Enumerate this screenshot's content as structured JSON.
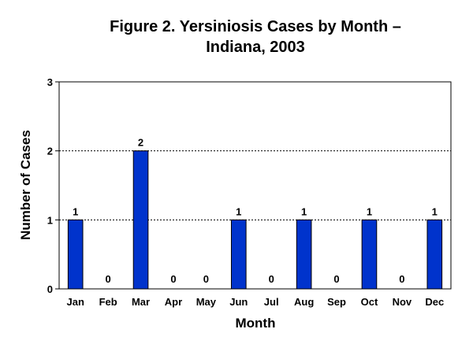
{
  "chart_data": {
    "type": "bar",
    "title_line1": "Figure 2.  Yersiniosis Cases by Month –",
    "title_line2": "Indiana, 2003",
    "xlabel": "Month",
    "ylabel": "Number of Cases",
    "categories": [
      "Jan",
      "Feb",
      "Mar",
      "Apr",
      "May",
      "Jun",
      "Jul",
      "Aug",
      "Sep",
      "Oct",
      "Nov",
      "Dec"
    ],
    "values": [
      1,
      0,
      2,
      0,
      0,
      1,
      0,
      1,
      0,
      1,
      0,
      1
    ],
    "ylim": [
      0,
      3
    ],
    "yticks": [
      0,
      1,
      2,
      3
    ],
    "grid": true,
    "legend": "none",
    "bar_color": "#0033cc"
  }
}
